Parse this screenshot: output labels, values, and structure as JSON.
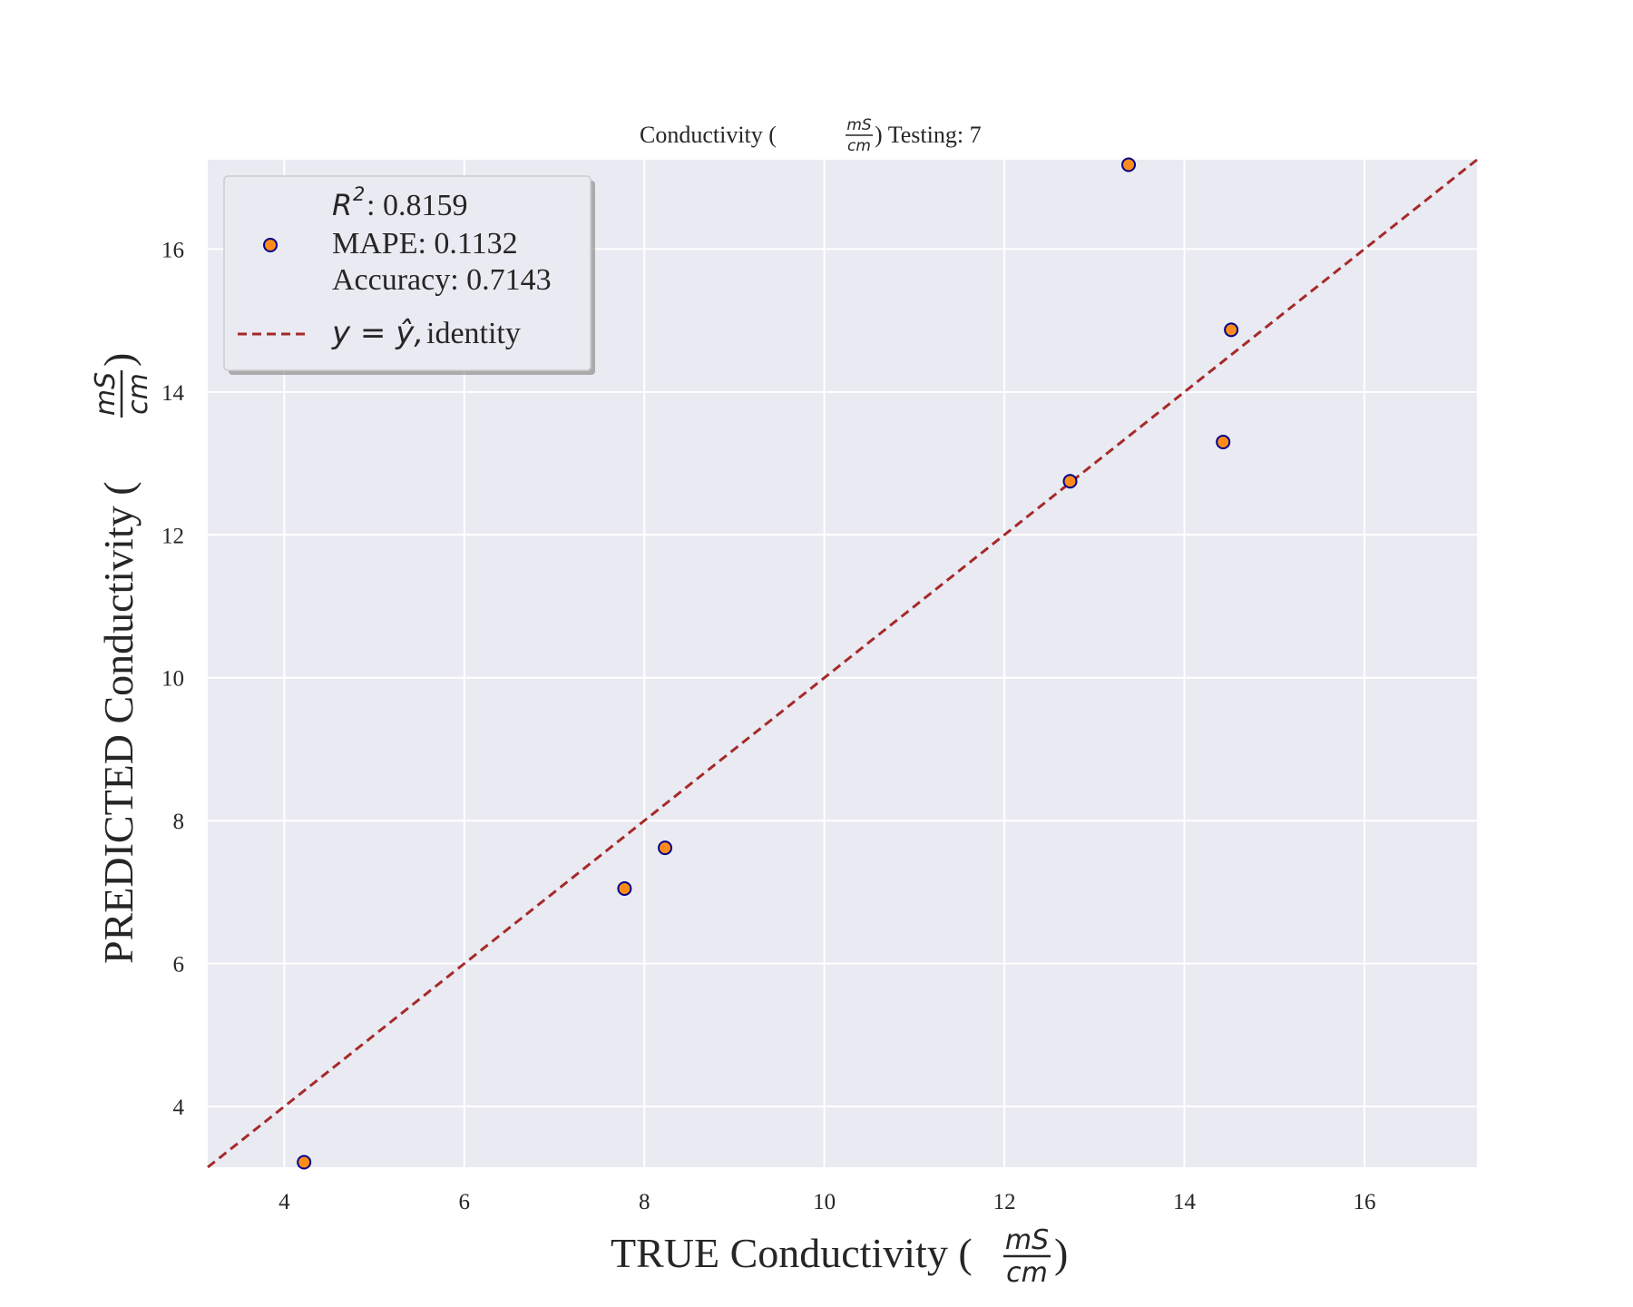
{
  "chart_data": {
    "type": "scatter",
    "title": {
      "prefix": "Conductivity (",
      "frac_num": "mS",
      "frac_den": "cm",
      "suffix": ") Testing: 7"
    },
    "xlabel": {
      "prefix": "TRUE Conductivity (",
      "frac_num": "mS",
      "frac_den": "cm",
      "suffix": ")"
    },
    "ylabel": {
      "prefix": "PREDICTED Conductivity (",
      "frac_num": "mS",
      "frac_den": "cm",
      "suffix": ")"
    },
    "xlim": [
      3.15,
      17.25
    ],
    "ylim": [
      3.15,
      17.25
    ],
    "xticks": [
      4,
      6,
      8,
      10,
      12,
      14,
      16
    ],
    "yticks": [
      4,
      6,
      8,
      10,
      12,
      14,
      16
    ],
    "grid": true,
    "legend_position": "upper-left",
    "legend": {
      "r2_symbol": "R",
      "r2_exponent": "2",
      "r2_value": ": 0.8159",
      "mape": "MAPE: 0.1132",
      "accuracy": "Accuracy: 0.7143",
      "identity_math": "y = ŷ,",
      "identity_text": " identity"
    },
    "points": [
      {
        "x": 4.22,
        "y": 3.22
      },
      {
        "x": 7.78,
        "y": 7.05
      },
      {
        "x": 8.23,
        "y": 7.62
      },
      {
        "x": 12.73,
        "y": 12.75
      },
      {
        "x": 13.38,
        "y": 17.18
      },
      {
        "x": 14.43,
        "y": 13.3
      },
      {
        "x": 14.52,
        "y": 14.87
      }
    ],
    "colors": {
      "background": "#eaeaf2",
      "grid": "#ffffff",
      "marker_fill": "#ff8c1a",
      "marker_edge": "#00008b",
      "identity_line": "#a52a2a"
    }
  }
}
